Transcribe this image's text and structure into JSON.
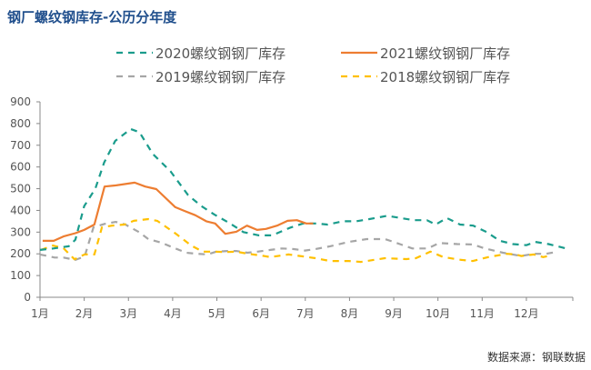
{
  "title": "钢厂螺纹钢库存-公历分年度",
  "source": "数据来源：钢联数据",
  "chart_data": {
    "type": "line",
    "title": "钢厂螺纹钢库存-公历分年度",
    "xlabel": "",
    "ylabel": "",
    "x_unit": "month",
    "xlim": [
      1,
      13.05
    ],
    "ylim": [
      0,
      900
    ],
    "y_ticks": [
      0,
      100,
      200,
      300,
      400,
      500,
      600,
      700,
      800,
      900
    ],
    "x_ticks": [
      1,
      2,
      3,
      4,
      5,
      6,
      7,
      8,
      9,
      10,
      11,
      12
    ],
    "x_tick_labels": [
      "1月",
      "2月",
      "3月",
      "4月",
      "5月",
      "6月",
      "7月",
      "8月",
      "9月",
      "10月",
      "11月",
      "12月"
    ],
    "grid": false,
    "legend": "top",
    "series": [
      {
        "name": "2020螺纹钢钢厂库存",
        "color": "#1a9c8c",
        "style": "dashed",
        "x": [
          1.0,
          1.3,
          1.65,
          1.8,
          2.0,
          2.25,
          2.45,
          2.7,
          3.05,
          3.25,
          3.55,
          3.95,
          4.35,
          4.65,
          4.95,
          5.3,
          5.6,
          5.95,
          6.25,
          6.65,
          6.95,
          7.25,
          7.5,
          7.85,
          8.15,
          8.45,
          8.85,
          9.15,
          9.45,
          9.75,
          9.95,
          10.2,
          10.5,
          10.8,
          11.1,
          11.4,
          11.7,
          12.0,
          12.2,
          12.5,
          12.9
        ],
        "y": [
          218,
          225,
          235,
          265,
          420,
          500,
          620,
          720,
          775,
          760,
          660,
          580,
          470,
          420,
          380,
          340,
          300,
          285,
          285,
          320,
          340,
          340,
          335,
          350,
          350,
          360,
          375,
          365,
          355,
          355,
          335,
          365,
          335,
          330,
          300,
          260,
          245,
          240,
          255,
          245,
          225
        ]
      },
      {
        "name": "2021螺纹钢钢厂库存",
        "color": "#ed7d31",
        "style": "solid",
        "x": [
          1.06,
          1.31,
          1.53,
          1.8,
          2.0,
          2.23,
          2.46,
          2.7,
          3.14,
          3.38,
          3.63,
          4.06,
          4.26,
          4.51,
          4.76,
          4.96,
          5.19,
          5.44,
          5.68,
          5.91,
          6.11,
          6.36,
          6.6,
          6.81,
          7.02,
          7.18
        ],
        "y": [
          260,
          260,
          280,
          295,
          310,
          335,
          510,
          515,
          528,
          510,
          498,
          415,
          398,
          378,
          350,
          340,
          292,
          302,
          330,
          310,
          315,
          330,
          352,
          355,
          340,
          340
        ]
      },
      {
        "name": "2019螺纹钢钢厂库存",
        "color": "#a6a6a6",
        "style": "dashed",
        "x": [
          1.0,
          1.33,
          1.53,
          1.8,
          2.01,
          2.21,
          2.46,
          2.71,
          2.93,
          3.24,
          3.45,
          3.74,
          4.0,
          4.31,
          4.56,
          4.79,
          4.99,
          5.24,
          5.44,
          5.69,
          5.92,
          6.21,
          6.47,
          6.74,
          6.99,
          7.23,
          7.56,
          7.98,
          8.39,
          8.8,
          9.0,
          9.42,
          9.77,
          10.03,
          10.44,
          10.79,
          11.06,
          11.47,
          11.88,
          12.17,
          12.44,
          12.71
        ],
        "y": [
          197,
          183,
          183,
          172,
          188,
          322,
          338,
          347,
          335,
          300,
          268,
          252,
          230,
          205,
          200,
          197,
          210,
          213,
          213,
          205,
          210,
          218,
          225,
          222,
          215,
          222,
          235,
          255,
          268,
          268,
          255,
          225,
          225,
          250,
          245,
          243,
          225,
          205,
          190,
          200,
          200,
          210
        ]
      },
      {
        "name": "2018螺纹钢钢厂库存",
        "color": "#ffc000",
        "style": "dashed",
        "x": [
          1.02,
          1.29,
          1.53,
          1.78,
          2.01,
          2.23,
          2.4,
          2.63,
          2.91,
          3.12,
          3.45,
          3.65,
          4.07,
          4.42,
          4.68,
          4.97,
          5.18,
          5.44,
          5.71,
          6.0,
          6.21,
          6.62,
          6.88,
          7.23,
          7.56,
          7.98,
          8.26,
          8.8,
          9.29,
          9.5,
          9.83,
          10.12,
          10.53,
          10.79,
          11.14,
          11.56,
          11.76,
          11.88,
          12.17,
          12.38,
          12.5
        ],
        "y": [
          218,
          238,
          226,
          175,
          197,
          197,
          322,
          330,
          335,
          352,
          360,
          352,
          293,
          238,
          210,
          210,
          208,
          210,
          200,
          192,
          185,
          197,
          190,
          180,
          167,
          167,
          163,
          180,
          176,
          180,
          210,
          185,
          172,
          167,
          185,
          200,
          197,
          190,
          197,
          185,
          190
        ]
      }
    ]
  }
}
